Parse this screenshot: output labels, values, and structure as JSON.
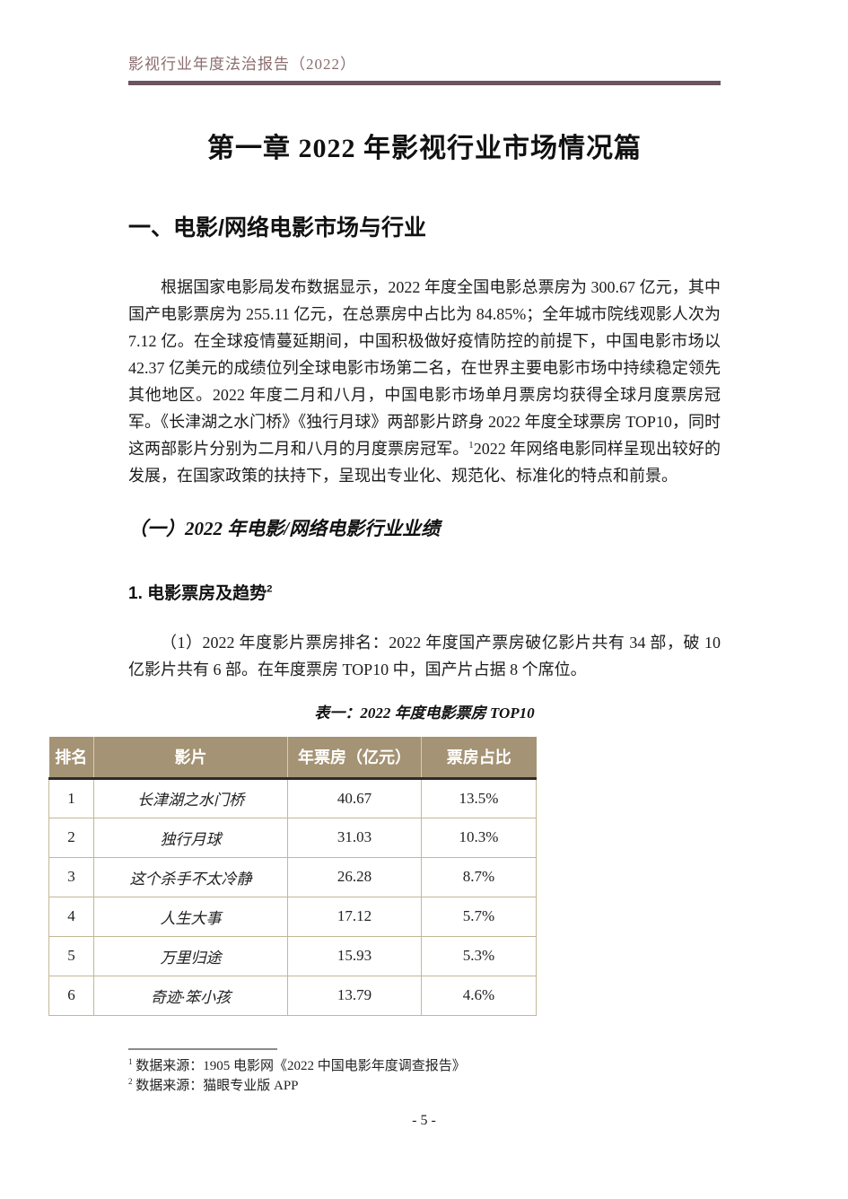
{
  "page": {
    "running_header": "影视行业年度法治报告（2022）",
    "page_number": "- 5 -"
  },
  "chapter": {
    "title": "第一章 2022 年影视行业市场情况篇"
  },
  "section": {
    "heading": "一、电影/网络电影市场与行业"
  },
  "paragraph1": {
    "part1": "根据国家电影局发布数据显示，2022 年度全国电影总票房为 300.67 亿元，其中国产电影票房为 255.11 亿元，在总票房中占比为 84.85%；全年城市院线观影人次为 7.12 亿。在全球疫情蔓延期间，中国积极做好疫情防控的前提下，中国电影市场以 42.37 亿美元的成绩位列全球电影市场第二名，在世界主要电影市场中持续稳定领先其他地区。2022 年度二月和八月，中国电影市场单月票房均获得全球月度票房冠军。《长津湖之水门桥》《独行月球》两部影片跻身 2022 年度全球票房 TOP10，同时这两部影片分别为二月和八月的月度票房冠军。",
    "footnote_ref": "1",
    "part2": "2022 年网络电影同样呈现出较好的发展，在国家政策的扶持下，呈现出专业化、规范化、标准化的特点和前景。"
  },
  "subsection": {
    "heading": "（一）2022 年电影/网络电影行业业绩"
  },
  "subsubsection": {
    "heading": "1. 电影票房及趋势",
    "footnote_ref": "2"
  },
  "paragraph2": "（1）2022 年度影片票房排名：2022 年度国产票房破亿影片共有 34 部，破 10 亿影片共有 6 部。在年度票房 TOP10 中，国产片占据 8 个席位。",
  "table": {
    "caption": "表一：2022 年度电影票房 TOP10",
    "headers": [
      "排名",
      "影片",
      "年票房（亿元）",
      "票房占比"
    ],
    "rows": [
      [
        "1",
        "长津湖之水门桥",
        "40.67",
        "13.5%"
      ],
      [
        "2",
        "独行月球",
        "31.03",
        "10.3%"
      ],
      [
        "3",
        "这个杀手不太冷静",
        "26.28",
        "8.7%"
      ],
      [
        "4",
        "人生大事",
        "17.12",
        "5.7%"
      ],
      [
        "5",
        "万里归途",
        "15.93",
        "5.3%"
      ],
      [
        "6",
        "奇迹·笨小孩",
        "13.79",
        "4.6%"
      ]
    ]
  },
  "footnotes": [
    {
      "ref": "1",
      "text": "数据来源：1905 电影网《2022 中国电影年度调查报告》"
    },
    {
      "ref": "2",
      "text": "数据来源：猫眼专业版 APP"
    }
  ],
  "colors": {
    "accent_header_text": "#8b6d6d",
    "accent_rule": "#6b5560",
    "table_header_bg": "#a49374",
    "table_border": "#c4b797"
  }
}
